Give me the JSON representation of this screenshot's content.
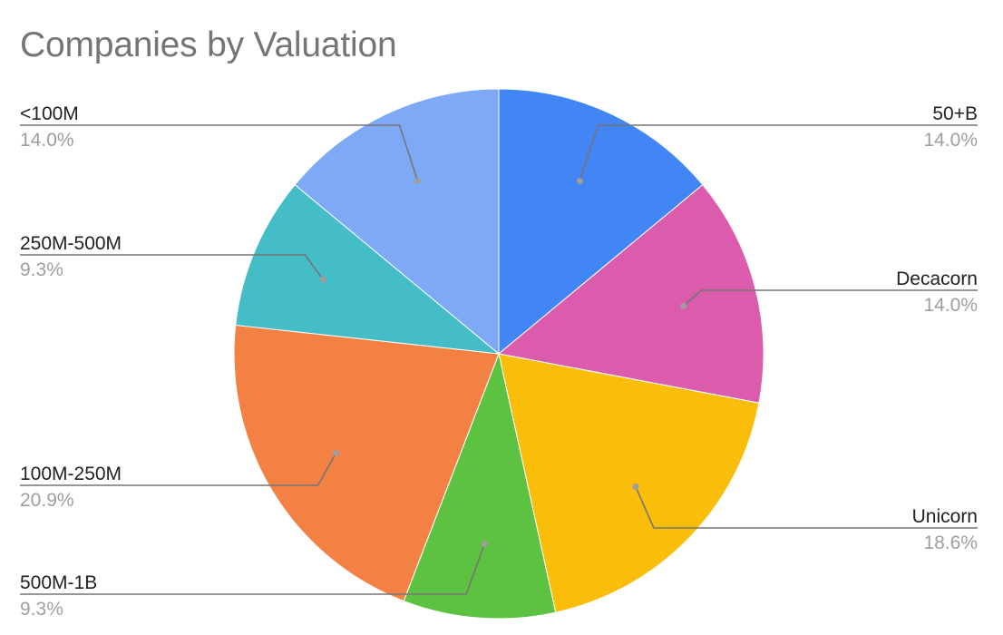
{
  "chart_data": {
    "type": "pie",
    "title": "Companies by Valuation",
    "slices": [
      {
        "label": "50+B",
        "percent": 14.0,
        "display": "14.0%",
        "color": "#4285f4"
      },
      {
        "label": "Decacorn",
        "percent": 14.0,
        "display": "14.0%",
        "color": "#db5bac"
      },
      {
        "label": "Unicorn",
        "percent": 18.6,
        "display": "18.6%",
        "color": "#fabd09"
      },
      {
        "label": "500M-1B",
        "percent": 9.3,
        "display": "9.3%",
        "color": "#5dc241"
      },
      {
        "label": "100M-250M",
        "percent": 20.9,
        "display": "20.9%",
        "color": "#f48144"
      },
      {
        "label": "250M-500M",
        "percent": 9.3,
        "display": "9.3%",
        "color": "#45bdc7"
      },
      {
        "label": "<100M",
        "percent": 14.0,
        "display": "14.0%",
        "color": "#7ea9f7"
      }
    ],
    "legend": "none"
  }
}
